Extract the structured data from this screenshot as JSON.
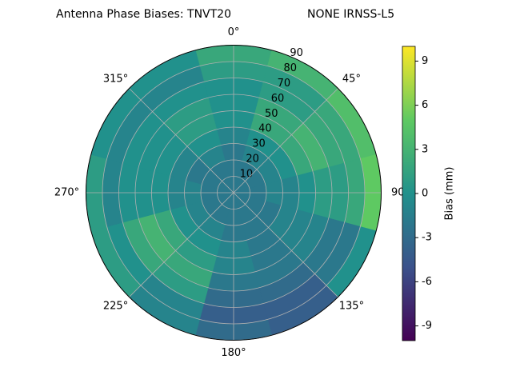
{
  "chart_data": {
    "type": "polar_contour",
    "title": "Antenna Phase Biases: TNVT20",
    "subtitle": "NONE IRNSS-L5",
    "theta": [
      0,
      30,
      60,
      90,
      120,
      150,
      180,
      210,
      240,
      270,
      300,
      330
    ],
    "r_edges": [
      0,
      10,
      20,
      30,
      40,
      50,
      60,
      70,
      80,
      90
    ],
    "values": [
      [
        -2,
        -2,
        -2,
        -1,
        0,
        0,
        0,
        1,
        2
      ],
      [
        -2,
        -2,
        -1,
        0,
        2,
        2,
        1,
        1,
        3
      ],
      [
        -2,
        -2,
        -1,
        0,
        2,
        3,
        2,
        2,
        4
      ],
      [
        -2,
        -2,
        -1,
        -1,
        0,
        1,
        1,
        2,
        5
      ],
      [
        -2,
        -2,
        -2,
        -1,
        -1,
        -1,
        -2,
        -2,
        0
      ],
      [
        -2,
        -2,
        -2,
        -2,
        -2,
        -2,
        -3,
        -4,
        -4
      ],
      [
        -2,
        -2,
        -2,
        -1,
        -1,
        -2,
        -3,
        -4,
        -3
      ],
      [
        -2,
        -2,
        -1,
        0,
        1,
        2,
        1,
        -1,
        -1
      ],
      [
        -2,
        -2,
        -1,
        0,
        2,
        3,
        2,
        0,
        1
      ],
      [
        -2,
        -2,
        -1,
        -1,
        0,
        0,
        0,
        -1,
        1
      ],
      [
        -2,
        -2,
        -2,
        -1,
        0,
        0,
        0,
        -1,
        0
      ],
      [
        -2,
        -2,
        -1,
        0,
        1,
        1,
        0,
        -1,
        0
      ]
    ],
    "rlim": [
      0,
      90
    ],
    "rticks": [
      10,
      20,
      30,
      40,
      50,
      60,
      70,
      80,
      90
    ],
    "theta_ticks": [
      {
        "value": 0,
        "label": "0°"
      },
      {
        "value": 45,
        "label": "45°"
      },
      {
        "value": 90,
        "label": "90°"
      },
      {
        "value": 135,
        "label": "135°"
      },
      {
        "value": 180,
        "label": "180°"
      },
      {
        "value": 225,
        "label": "225°"
      },
      {
        "value": 270,
        "label": "270°"
      },
      {
        "value": 315,
        "label": "315°"
      }
    ],
    "clim": [
      -10,
      10
    ],
    "cticks": [
      -9,
      -6,
      -3,
      0,
      3,
      6,
      9
    ],
    "colorbar_label": "Bias (mm)",
    "colormap": [
      "#440154",
      "#3b528b",
      "#21918c",
      "#5ec962",
      "#fde725"
    ],
    "grid": true
  }
}
